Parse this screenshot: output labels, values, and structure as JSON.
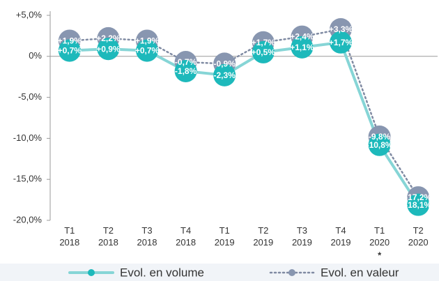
{
  "chart_data": {
    "type": "line",
    "categories": [
      "T1 2018",
      "T2 2018",
      "T3 2018",
      "T4 2018",
      "T1 2019",
      "T2 2019",
      "T3 2019",
      "T4 2019",
      "T1 2020",
      "T2 2020"
    ],
    "annotations": [
      {
        "category": 8,
        "text": "*"
      }
    ],
    "series": [
      {
        "name": "Evol. en volume",
        "color": "#1db9bb",
        "line_color": "#86d5d6",
        "line_style": "solid",
        "values": [
          0.7,
          0.9,
          0.7,
          -1.8,
          -2.3,
          0.5,
          1.1,
          1.7,
          -10.8,
          -18.1
        ],
        "value_labels": [
          "+0,7%",
          "+0,9%",
          "+0,7%",
          "-1,8%",
          "-2,3%",
          "+0,5%",
          "+1,1%",
          "+1,7%",
          "-10,8%",
          "-18,1%"
        ]
      },
      {
        "name": "Evol. en valeur",
        "color": "#8896b0",
        "line_color": "#7f8aa2",
        "line_style": "dotted",
        "values": [
          1.9,
          2.2,
          1.9,
          -0.7,
          -0.9,
          1.7,
          2.4,
          3.3,
          -9.8,
          -17.2
        ],
        "value_labels": [
          "+1,9%",
          "+2,2%",
          "+1,9%",
          "-0,7%",
          "-0,9%",
          "+1,7%",
          "+2,4%",
          "+3,3%",
          "-9,8%",
          "-17,2%"
        ]
      }
    ],
    "ylim": [
      -20,
      5
    ],
    "yticks": [
      {
        "value": 5,
        "label": "+5,0%"
      },
      {
        "value": 0,
        "label": "0%"
      },
      {
        "value": -5,
        "label": "-5,0%"
      },
      {
        "value": -10,
        "label": "-10,0%"
      },
      {
        "value": -15,
        "label": "-15,0%"
      },
      {
        "value": -20,
        "label": "-20,0%"
      }
    ]
  }
}
